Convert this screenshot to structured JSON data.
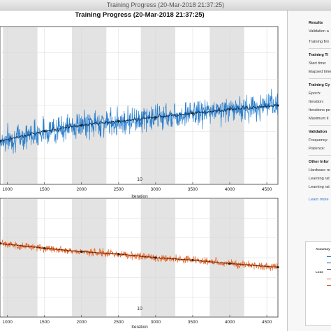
{
  "window": {
    "title": "Training Progress (20-Mar-2018 21:37:25)"
  },
  "figure": {
    "title": "Training Progress (20-Mar-2018 21:37:25)"
  },
  "colors": {
    "accuracy": "#1f77c8",
    "accuracy_smooth": "#0d4f8f",
    "loss": "#e8601c",
    "loss_smooth": "#b03a08",
    "epoch_band": "#e3e3e3",
    "grid": "#d9d9d9",
    "dark_line": "#222222"
  },
  "sidebar": {
    "results": {
      "heading": "Results",
      "rows": [
        "Validation a",
        "Training fini"
      ]
    },
    "training_time": {
      "heading": "Training Ti",
      "rows": [
        "Start time:",
        "Elapsed time"
      ]
    },
    "training_cycle": {
      "heading": "Training Cy",
      "rows": [
        "Epoch:",
        "Iteration:",
        "Iterations pe",
        "Maximum it"
      ]
    },
    "validation": {
      "heading": "Validation",
      "rows": [
        "Frequency:",
        "Patience:"
      ]
    },
    "other_info": {
      "heading": "Other Infor",
      "rows": [
        "Hardware re",
        "Learning rat",
        "Learning rat"
      ]
    },
    "link": "Learn more"
  },
  "legend": {
    "accuracy_heading": "Accuracy",
    "loss_heading": "Loss"
  },
  "chart_data": [
    {
      "type": "line",
      "title": "",
      "xlabel": "Iteration",
      "ylabel": "",
      "xlim": [
        900,
        4650
      ],
      "x_ticks": [
        "1000",
        "1500",
        "2000",
        "2500",
        "3000",
        "3500",
        "4000",
        "4500"
      ],
      "epoch_label": "10",
      "series": [
        {
          "role": "raw",
          "x": [
            900,
            1500,
            2000,
            2500,
            3000,
            3500,
            4000,
            4650
          ],
          "values": [
            0.42,
            0.47,
            0.5,
            0.52,
            0.54,
            0.56,
            0.58,
            0.6
          ]
        },
        {
          "role": "smoothed",
          "x": [
            900,
            1500,
            2000,
            2500,
            3000,
            3500,
            4000,
            4650
          ],
          "values": [
            0.42,
            0.47,
            0.5,
            0.52,
            0.54,
            0.56,
            0.58,
            0.6
          ]
        }
      ],
      "grid": true
    },
    {
      "type": "line",
      "title": "",
      "xlabel": "Iteration",
      "ylabel": "",
      "xlim": [
        900,
        4650
      ],
      "x_ticks": [
        "1000",
        "1500",
        "2000",
        "2500",
        "3000",
        "3500",
        "4000",
        "4500"
      ],
      "epoch_label": "10",
      "series": [
        {
          "role": "raw",
          "x": [
            900,
            1500,
            2000,
            2500,
            3000,
            3500,
            4000,
            4650
          ],
          "values": [
            0.62,
            0.58,
            0.55,
            0.53,
            0.5,
            0.48,
            0.45,
            0.42
          ]
        },
        {
          "role": "smoothed",
          "x": [
            900,
            1500,
            2000,
            2500,
            3000,
            3500,
            4000,
            4650
          ],
          "values": [
            0.62,
            0.58,
            0.55,
            0.53,
            0.5,
            0.48,
            0.45,
            0.42
          ]
        }
      ],
      "grid": true
    }
  ]
}
